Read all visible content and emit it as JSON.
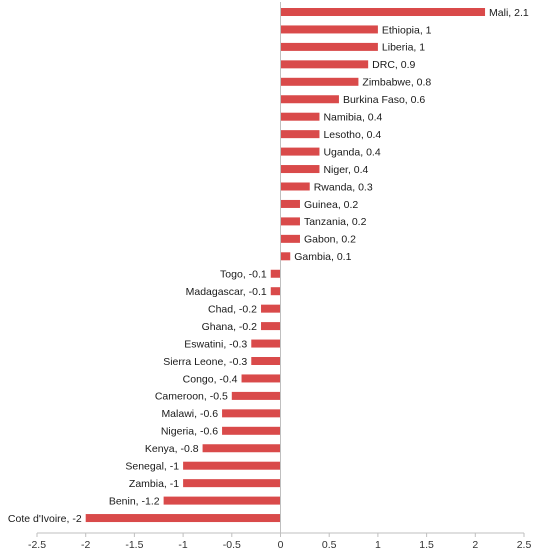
{
  "chart_data": {
    "type": "bar",
    "orientation": "horizontal",
    "title": "",
    "xlabel": "",
    "ylabel": "",
    "xlim": [
      -2.5,
      2.5
    ],
    "x_ticks": [
      -2.5,
      -2,
      -1.5,
      -1,
      -0.5,
      0,
      0.5,
      1,
      1.5,
      2,
      2.5
    ],
    "x_tick_labels": [
      "-2.5",
      "-2",
      "-1.5",
      "-1",
      "-0.5",
      "0",
      "0.5",
      "1",
      "1.5",
      "2",
      "2.5"
    ],
    "grid": false,
    "legend": "none",
    "bar_color": "#d94a4a",
    "categories": [
      "Mali",
      "Ethiopia",
      "Liberia",
      "DRC",
      "Zimbabwe",
      "Burkina Faso",
      "Namibia",
      "Lesotho",
      "Uganda",
      "Niger",
      "Rwanda",
      "Guinea",
      "Tanzania",
      "Gabon",
      "Gambia",
      "Togo",
      "Madagascar",
      "Chad",
      "Ghana",
      "Eswatini",
      "Sierra Leone",
      "Congo",
      "Cameroon",
      "Malawi",
      "Nigeria",
      "Kenya",
      "Senegal",
      "Zambia",
      "Benin",
      "Cote d'Ivoire"
    ],
    "values": [
      2.1,
      1,
      1,
      0.9,
      0.8,
      0.6,
      0.4,
      0.4,
      0.4,
      0.4,
      0.3,
      0.2,
      0.2,
      0.2,
      0.1,
      -0.1,
      -0.1,
      -0.2,
      -0.2,
      -0.3,
      -0.3,
      -0.4,
      -0.5,
      -0.6,
      -0.6,
      -0.8,
      -1,
      -1,
      -1.2,
      -2
    ],
    "data_labels": [
      "Mali, 2.1",
      "Ethiopia, 1",
      "Liberia, 1",
      "DRC, 0.9",
      "Zimbabwe, 0.8",
      "Burkina Faso, 0.6",
      "Namibia, 0.4",
      "Lesotho, 0.4",
      "Uganda, 0.4",
      "Niger, 0.4",
      "Rwanda, 0.3",
      "Guinea, 0.2",
      "Tanzania, 0.2",
      "Gabon, 0.2",
      "Gambia, 0.1",
      "Togo, -0.1",
      "Madagascar, -0.1",
      "Chad, -0.2",
      "Ghana, -0.2",
      "Eswatini, -0.3",
      "Sierra Leone, -0.3",
      "Congo, -0.4",
      "Cameroon, -0.5",
      "Malawi, -0.6",
      "Nigeria, -0.6",
      "Kenya, -0.8",
      "Senegal, -1",
      "Zambia, -1",
      "Benin, -1.2",
      "Cote d'Ivoire, -2"
    ]
  }
}
